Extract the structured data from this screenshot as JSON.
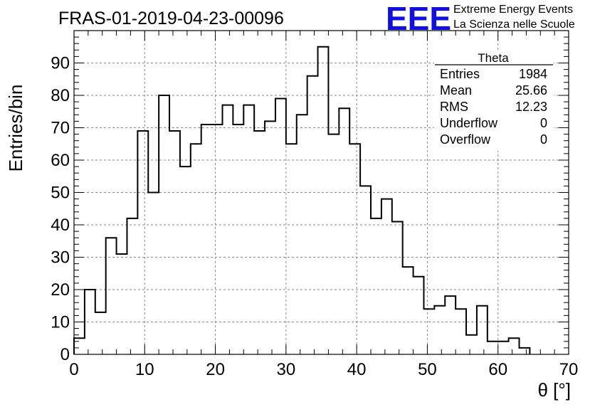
{
  "header": {
    "run_title": "FRAS-01-2019-04-23-00096",
    "logo_text": "EEE",
    "logo_line1": "Extreme Energy Events",
    "logo_line2": "La Scienza nelle Scuole",
    "brand_color": "#1010e0"
  },
  "stats_box": {
    "title": "Theta",
    "rows": [
      {
        "label": "Entries",
        "value": "1984"
      },
      {
        "label": "Mean",
        "value": "25.66"
      },
      {
        "label": "RMS",
        "value": "12.23"
      },
      {
        "label": "Underflow",
        "value": "0"
      },
      {
        "label": "Overflow",
        "value": "0"
      }
    ]
  },
  "chart_data": {
    "type": "bar",
    "style": "step-histogram",
    "title": "FRAS-01-2019-04-23-00096",
    "xlabel": "θ [°]",
    "ylabel": "Entries/bin",
    "xlim": [
      0,
      70
    ],
    "ylim": [
      0,
      100
    ],
    "x_ticks": [
      0,
      10,
      20,
      30,
      40,
      50,
      60,
      70
    ],
    "y_ticks": [
      0,
      10,
      20,
      30,
      40,
      50,
      60,
      70,
      80,
      90
    ],
    "grid": true,
    "bin_width": 1.5,
    "bin_start": 0,
    "series": [
      {
        "values": [
          5,
          20,
          13,
          36,
          31,
          42,
          69,
          50,
          80,
          69,
          58,
          65,
          71,
          71,
          77,
          71,
          77,
          69,
          72,
          79,
          65,
          74,
          86,
          95,
          68,
          76,
          65,
          52,
          42,
          48,
          41,
          27,
          24,
          14,
          15,
          18,
          14,
          6,
          15,
          4,
          4,
          5,
          2
        ]
      }
    ]
  }
}
